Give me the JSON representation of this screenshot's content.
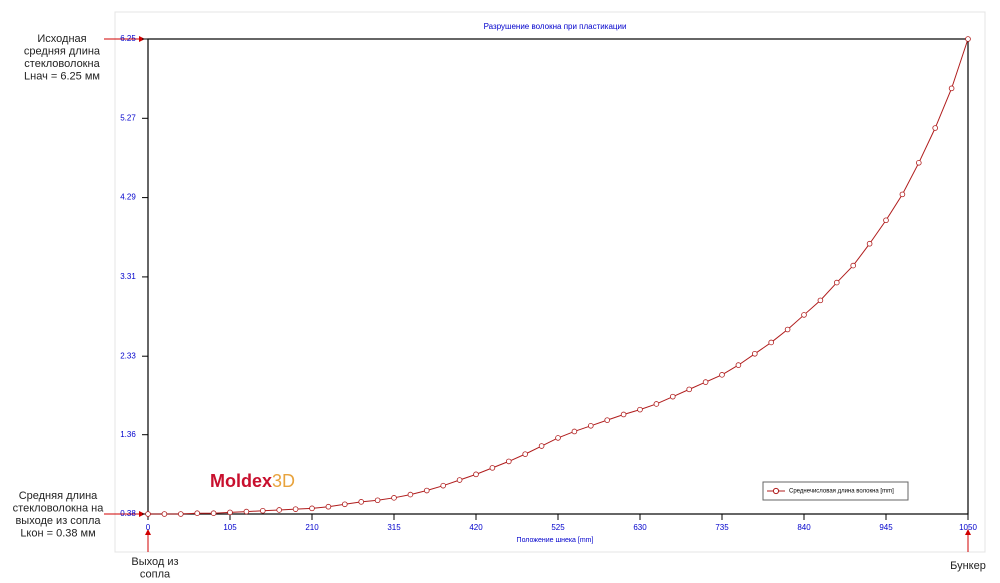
{
  "chart_data": {
    "type": "line",
    "title": "Разрушение волокна при пластикации",
    "x_label": "Положение шнека [mm]",
    "x": [
      0,
      21,
      42,
      63,
      84,
      105,
      126,
      147,
      168,
      189,
      210,
      231,
      252,
      273,
      294,
      315,
      336,
      357,
      378,
      399,
      420,
      441,
      462,
      483,
      504,
      525,
      546,
      567,
      588,
      609,
      630,
      651,
      672,
      693,
      714,
      735,
      756,
      777,
      798,
      819,
      840,
      861,
      882,
      903,
      924,
      945,
      966,
      987,
      1008,
      1029,
      1050
    ],
    "series": [
      {
        "name": "Среднечисловая длина волокна [mm]",
        "color": "#b01c1c",
        "values": [
          0.38,
          0.38,
          0.38,
          0.39,
          0.39,
          0.4,
          0.41,
          0.42,
          0.43,
          0.44,
          0.45,
          0.47,
          0.5,
          0.53,
          0.55,
          0.58,
          0.62,
          0.67,
          0.73,
          0.8,
          0.87,
          0.95,
          1.03,
          1.12,
          1.22,
          1.32,
          1.4,
          1.47,
          1.54,
          1.61,
          1.67,
          1.74,
          1.83,
          1.92,
          2.01,
          2.1,
          2.22,
          2.36,
          2.5,
          2.66,
          2.84,
          3.02,
          3.24,
          3.45,
          3.72,
          4.01,
          4.33,
          4.72,
          5.15,
          5.64,
          6.25
        ]
      }
    ],
    "xlim": [
      0,
      1050
    ],
    "xticks": [
      0,
      105,
      210,
      315,
      420,
      525,
      630,
      735,
      840,
      945,
      1050
    ],
    "ylim": [
      0.38,
      6.25
    ],
    "yticks": [
      0.38,
      1.36,
      2.33,
      3.31,
      4.29,
      5.27,
      6.25
    ],
    "logo": [
      "Moldex",
      "3D"
    ],
    "annotations": [
      [
        "Исходная",
        "средняя длина",
        "стекловолокна",
        "Lнач = 6.25 мм"
      ],
      [
        "Средняя длина",
        "стекловолокна  на",
        "выходе из  сопла",
        "Lкон = 0.38 мм"
      ],
      [
        "Выход из",
        "сопла"
      ],
      [
        "Бункер"
      ]
    ]
  }
}
